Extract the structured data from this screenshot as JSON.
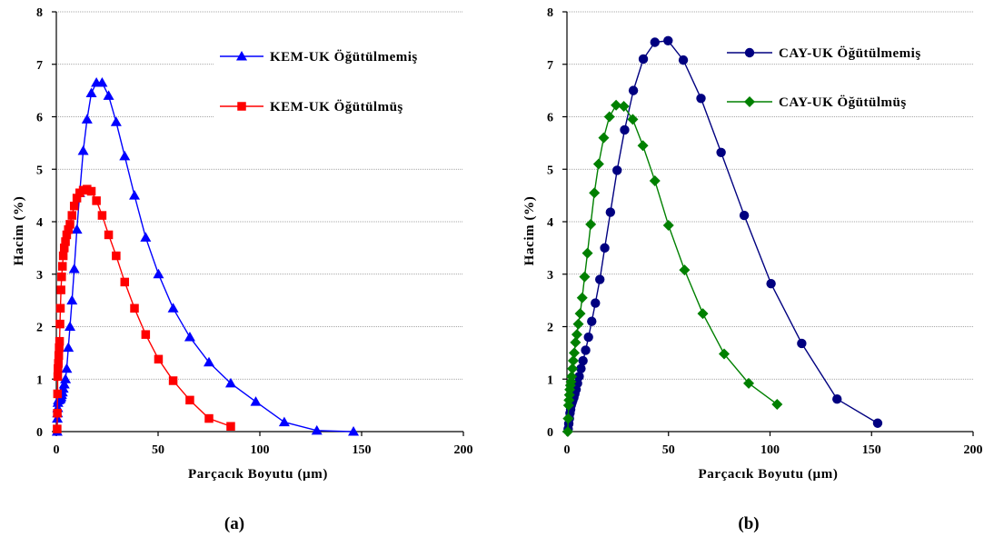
{
  "chart_data": [
    {
      "type": "scatter",
      "panel_label": "(a)",
      "xlabel": "Parçacık Boyutu (µm)",
      "ylabel": "Hacim (%)",
      "xlim": [
        0,
        200
      ],
      "ylim": [
        0,
        8
      ],
      "xticks": [
        "0",
        "50",
        "100",
        "150",
        "200"
      ],
      "yticks": [
        "0",
        "1",
        "2",
        "3",
        "4",
        "5",
        "6",
        "7",
        "8"
      ],
      "grid": "horizontal",
      "legend_position": "top-right",
      "series": [
        {
          "name": "KEM-UK Öğütülmemiş",
          "color": "#0000ff",
          "marker": "triangle",
          "x": [
            0.4,
            0.5,
            0.6,
            0.7,
            0.8,
            1.0,
            1.2,
            1.4,
            1.6,
            1.8,
            2.0,
            2.3,
            2.6,
            3.0,
            3.4,
            3.9,
            4.5,
            5.1,
            5.9,
            6.7,
            7.7,
            8.8,
            10.1,
            11.5,
            13.2,
            15.1,
            17.2,
            19.7,
            22.5,
            25.7,
            29.4,
            33.6,
            38.4,
            43.9,
            50.2,
            57.4,
            65.6,
            75.0,
            85.7,
            98.0,
            112.0,
            128.0,
            146.0
          ],
          "y": [
            0.0,
            0.25,
            0.35,
            0.45,
            0.55,
            0.6,
            0.6,
            0.62,
            0.62,
            0.62,
            0.64,
            0.66,
            0.7,
            0.75,
            0.82,
            0.9,
            1.0,
            1.2,
            1.6,
            2.0,
            2.5,
            3.1,
            3.85,
            4.55,
            5.35,
            5.95,
            6.45,
            6.65,
            6.65,
            6.4,
            5.9,
            5.25,
            4.5,
            3.7,
            3.0,
            2.35,
            1.8,
            1.32,
            0.92,
            0.57,
            0.18,
            0.02,
            0.0
          ]
        },
        {
          "name": "KEM-UK Öğütülmüş",
          "color": "#ff0000",
          "marker": "square",
          "x": [
            0.4,
            0.5,
            0.6,
            0.7,
            0.8,
            1.0,
            1.2,
            1.4,
            1.6,
            1.8,
            2.0,
            2.3,
            2.6,
            3.0,
            3.4,
            3.9,
            4.5,
            5.1,
            5.9,
            6.7,
            7.7,
            8.8,
            10.1,
            11.5,
            13.2,
            15.1,
            17.2,
            19.7,
            22.5,
            25.7,
            29.4,
            33.6,
            38.4,
            43.9,
            50.2,
            57.4,
            65.6,
            75.0,
            85.7
          ],
          "y": [
            0.05,
            0.35,
            0.72,
            1.05,
            1.2,
            1.3,
            1.45,
            1.6,
            1.72,
            2.05,
            2.35,
            2.7,
            2.95,
            3.15,
            3.35,
            3.5,
            3.62,
            3.75,
            3.85,
            3.95,
            4.12,
            4.3,
            4.45,
            4.55,
            4.6,
            4.62,
            4.58,
            4.4,
            4.12,
            3.75,
            3.35,
            2.85,
            2.35,
            1.85,
            1.38,
            0.97,
            0.6,
            0.25,
            0.1
          ]
        }
      ]
    },
    {
      "type": "scatter",
      "panel_label": "(b)",
      "xlabel": "Parçacık Boyutu (µm)",
      "ylabel": "Hacim (%)",
      "xlim": [
        0,
        200
      ],
      "ylim": [
        0,
        8
      ],
      "xticks": [
        "0",
        "50",
        "100",
        "150",
        "200"
      ],
      "yticks": [
        "0",
        "1",
        "2",
        "3",
        "4",
        "5",
        "6",
        "7",
        "8"
      ],
      "grid": "horizontal",
      "legend_position": "top-right",
      "series": [
        {
          "name": "CAY-UK Öğütülmemiş",
          "color": "#000080",
          "marker": "circle",
          "x": [
            0.6,
            0.9,
            1.2,
            1.5,
            1.8,
            2.1,
            2.5,
            2.9,
            3.4,
            3.9,
            4.5,
            5.2,
            6.0,
            6.9,
            7.9,
            9.2,
            10.6,
            12.2,
            14.0,
            16.2,
            18.6,
            21.4,
            24.7,
            28.4,
            32.7,
            37.6,
            43.3,
            49.8,
            57.3,
            66.0,
            75.9,
            87.3,
            100.5,
            115.6,
            133.0,
            153.0
          ],
          "y": [
            0.05,
            0.15,
            0.25,
            0.35,
            0.42,
            0.5,
            0.55,
            0.6,
            0.65,
            0.72,
            0.8,
            0.92,
            1.05,
            1.2,
            1.35,
            1.55,
            1.8,
            2.1,
            2.45,
            2.9,
            3.5,
            4.18,
            4.98,
            5.75,
            6.5,
            7.1,
            7.42,
            7.45,
            7.08,
            6.35,
            5.32,
            4.12,
            2.82,
            1.68,
            0.62,
            0.16
          ]
        },
        {
          "name": "CAY-UK Öğütülmüş",
          "color": "#008000",
          "marker": "diamond",
          "x": [
            0.4,
            0.6,
            0.8,
            1.0,
            1.2,
            1.4,
            1.7,
            2.0,
            2.3,
            2.7,
            3.1,
            3.6,
            4.2,
            4.9,
            5.6,
            6.5,
            7.5,
            8.7,
            10.1,
            11.7,
            13.5,
            15.6,
            18.1,
            20.9,
            24.2,
            28.0,
            32.4,
            37.4,
            43.3,
            50.0,
            57.9,
            66.9,
            77.4,
            89.5,
            103.5
          ],
          "y": [
            0.0,
            0.25,
            0.5,
            0.6,
            0.7,
            0.8,
            0.88,
            0.95,
            1.05,
            1.2,
            1.35,
            1.5,
            1.7,
            1.85,
            2.05,
            2.25,
            2.55,
            2.95,
            3.4,
            3.95,
            4.55,
            5.1,
            5.6,
            6.0,
            6.22,
            6.2,
            5.95,
            5.45,
            4.78,
            3.93,
            3.08,
            2.25,
            1.48,
            0.92,
            0.52
          ]
        }
      ]
    }
  ]
}
